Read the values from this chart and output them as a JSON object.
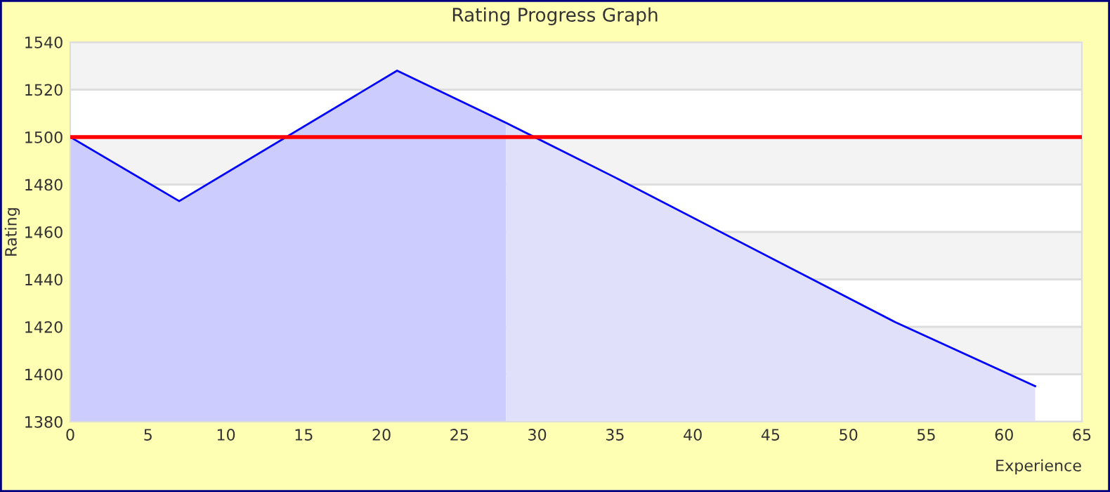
{
  "chart_data": {
    "type": "line",
    "title": "Rating Progress Graph",
    "xlabel": "Experience",
    "ylabel": "Rating",
    "series": [
      {
        "type": "area",
        "color": "#ccccff",
        "x": [
          0,
          7,
          21,
          28
        ],
        "values": [
          1500,
          1473,
          1528,
          1506
        ]
      },
      {
        "type": "area",
        "color": "#e0e0fb",
        "x": [
          28,
          35,
          53,
          62
        ],
        "values": [
          1506,
          1483,
          1422,
          1395
        ]
      },
      {
        "color": "#0000ff",
        "x": [
          0,
          7,
          21,
          28,
          35,
          53,
          62
        ],
        "values": [
          1500,
          1473,
          1528,
          1506,
          1483,
          1422,
          1395
        ]
      }
    ],
    "xlim": [
      0,
      65
    ],
    "xticks": [
      0,
      5,
      10,
      15,
      20,
      25,
      30,
      35,
      40,
      45,
      50,
      55,
      60,
      65
    ],
    "ylim": [
      1380,
      1540
    ],
    "yticks": [
      1380,
      1400,
      1420,
      1440,
      1460,
      1480,
      1500,
      1520,
      1540
    ],
    "ref_lines": [
      {
        "axis": "y",
        "value": 1500,
        "color": "#ff0000"
      }
    ],
    "bands": [
      {
        "axis": "y",
        "from": 1520,
        "to": 1540,
        "color": "#f3f3f3"
      },
      {
        "axis": "y",
        "from": 1480,
        "to": 1500,
        "color": "#f3f3f3"
      },
      {
        "axis": "y",
        "from": 1440,
        "to": 1460,
        "color": "#f3f3f3"
      },
      {
        "axis": "y",
        "from": 1400,
        "to": 1420,
        "color": "#f3f3f3"
      }
    ],
    "grid": "y",
    "legend": false,
    "marker": "none",
    "line_style": "solid"
  }
}
